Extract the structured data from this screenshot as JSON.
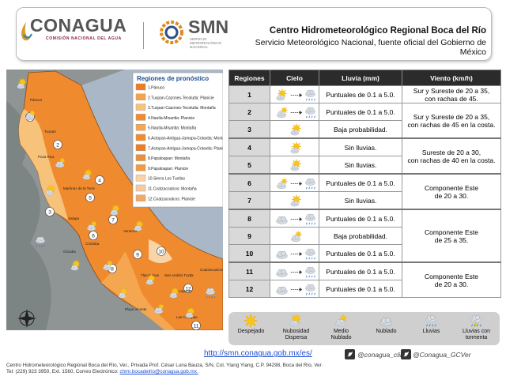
{
  "header": {
    "logo1": "CONAGUA",
    "logo1_sub": "COMISIÓN NACIONAL DEL AGUA",
    "logo2": "SMN",
    "logo2_sub": "SERVICIO METEOROLÓGICO NACIONAL",
    "title": "Centro Hidrometeorológico Regional Boca del Río",
    "subtitle": "Servicio Meteorológico Nacional, fuente oficial del Gobierno de México"
  },
  "map": {
    "legend_title": "Regiones de pronóstico",
    "legend": [
      "1.Pánuco",
      "2.Tuxpan-Cazones-Tecolutla: Planicie",
      "3.Tuxpan-Cazones-Tecolutla: Montaña",
      "4.Nautla-Misantla: Planicie",
      "5.Nautla-Misantla: Montaña",
      "6.Actopan-Antigua-Jamapa-Cotaxtla: Montaña",
      "7.Actopan-Antigua-Jamapa-Cotaxtla: Planicie",
      "8.Papaloapan: Montaña",
      "9.Papaloapan: Planicie",
      "10.Sierra Los Tuxtlas",
      "11.Coatzacoalcos: Montaña",
      "12.Coatzacoalcos: Planicie"
    ],
    "legend_colors": [
      "#f07a22",
      "#f5a24a",
      "#f7c27a",
      "#f28a2e",
      "#f5a650",
      "#f08c2c",
      "#f07d20",
      "#ef8f35",
      "#f39a40",
      "#f8d4a8",
      "#f8caa0",
      "#f4a860"
    ],
    "markers": [
      "1",
      "2",
      "3",
      "4",
      "5",
      "6",
      "7",
      "8",
      "9",
      "10",
      "11",
      "12"
    ],
    "towns": [
      "Pánuco",
      "Tuxpan",
      "Poza Rica",
      "Martínez de la Torre",
      "Xalapa",
      "Veracruz",
      "Córdoba",
      "Orizaba",
      "Tlacotalpan",
      "San Andrés Tuxtla",
      "Acayucan",
      "Coatzacoalcos",
      "Playa Vicente",
      "Las Choapas"
    ]
  },
  "table": {
    "headers": [
      "Regiones",
      "Cielo",
      "Lluvia (mm)",
      "Viento (km/h)"
    ],
    "rows": [
      {
        "region": "1",
        "lluvia": "Puntuales de 0.1 a 5.0."
      },
      {
        "region": "2",
        "lluvia": "Puntuales de 0.1 a 5.0."
      },
      {
        "region": "3",
        "lluvia": "Baja probabilidad."
      },
      {
        "region": "4",
        "lluvia": "Sin lluvias."
      },
      {
        "region": "5",
        "lluvia": "Sin lluvias."
      },
      {
        "region": "6",
        "lluvia": "Puntuales de 0.1 a 5.0."
      },
      {
        "region": "7",
        "lluvia": "Sin lluvias."
      },
      {
        "region": "8",
        "lluvia": "Puntuales de 0.1 a 5.0."
      },
      {
        "region": "9",
        "lluvia": "Baja probabilidad."
      },
      {
        "region": "10",
        "lluvia": "Puntuales de 0.1 a 5.0."
      },
      {
        "region": "11",
        "lluvia": "Puntuales de 0.1 a 5.0."
      },
      {
        "region": "12",
        "lluvia": "Puntuales de 0.1 a 5.0."
      }
    ],
    "viento": [
      [
        "Sur y Sureste de 20 a 35,",
        "con rachas de 45."
      ],
      [
        "Sur y Sureste de 20 a 35,",
        "con rachas de 45 en la costa."
      ],
      [
        "Sureste de 20 a 30,",
        "con rachas de 40 en la costa."
      ],
      [
        "Componente Este",
        "de 20 a 30."
      ],
      [
        "Componente Este",
        "de 25 a 35."
      ],
      [
        "Componente Este",
        "de 20 a 30."
      ]
    ]
  },
  "sky_legend": [
    [
      "Despejado"
    ],
    [
      "Nubosidad",
      "Dispersa"
    ],
    [
      "Medio",
      "Nublado"
    ],
    [
      "Nublado"
    ],
    [
      "Lluvias"
    ],
    [
      "Lluvias con",
      "tormenta"
    ]
  ],
  "footer": {
    "url": "http://smn.conagua.gob.mx/es/",
    "twitter1": "@conagua_clima",
    "twitter2": "@Conagua_GCVer",
    "address": "Centro Hidrometeorológico Regional Boca del Río, Ver., Privada Prof. César Luna Bauza, S/N, Col. Ylang Ylang, C.P. 94298, Boca del Río, Ver.",
    "contact": "Tel: (229) 923 3950, Ext. 1560, Correo Electrónico:",
    "email": "chmr.bocadelrio@conagua.gob.mx."
  }
}
